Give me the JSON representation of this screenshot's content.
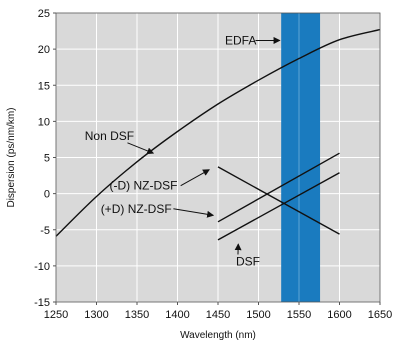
{
  "chart_data": {
    "type": "line",
    "xlabel": "Wavelength (nm)",
    "ylabel": "Dispersion (ps/nm/km)",
    "xlim": [
      1250,
      1650
    ],
    "ylim": [
      -15,
      25
    ],
    "xticks": [
      "1250",
      "1300",
      "1350",
      "1400",
      "1450",
      "1500",
      "1550",
      "1600",
      "1650"
    ],
    "yticks": [
      "25",
      "20",
      "15",
      "10",
      "5",
      "0",
      "-5",
      "-10",
      "-15"
    ],
    "grid": true,
    "background": "#d9d9d9",
    "band": {
      "label": "EDFA",
      "x_start": 1528,
      "x_end": 1576,
      "color": "#1a7bbf"
    },
    "series": [
      {
        "name": "Non DSF",
        "x": [
          1250,
          1300,
          1350,
          1400,
          1450,
          1500,
          1550,
          1600,
          1650
        ],
        "y": [
          -5.9,
          -0.4,
          4.4,
          8.6,
          12.4,
          15.7,
          18.7,
          21.3,
          22.7
        ]
      },
      {
        "name": "(-D) NZ-DSF",
        "x": [
          1450,
          1600
        ],
        "y": [
          3.7,
          -5.6
        ]
      },
      {
        "name": "(+D) NZ-DSF",
        "x": [
          1450,
          1600
        ],
        "y": [
          -3.9,
          5.6
        ]
      },
      {
        "name": "DSF",
        "x": [
          1450,
          1600
        ],
        "y": [
          -6.4,
          2.9
        ]
      }
    ],
    "annotations": [
      {
        "text": "EDFA",
        "x": 1478,
        "y": 21.2,
        "tx": 1526,
        "ty": 21.2
      },
      {
        "text": "Non DSF",
        "x": 1316,
        "y": 8.0,
        "tx": 1370,
        "ty": 5.6
      },
      {
        "text": "(-D) NZ-DSF",
        "x": 1358,
        "y": 1.1,
        "tx": 1439,
        "ty": 3.3
      },
      {
        "text": "(+D) NZ-DSF",
        "x": 1349,
        "y": -2.1,
        "tx": 1444,
        "ty": -3.0
      },
      {
        "text": "DSF",
        "x": 1487,
        "y": -9.4,
        "tx": 1475,
        "ty": -7.0
      }
    ]
  }
}
